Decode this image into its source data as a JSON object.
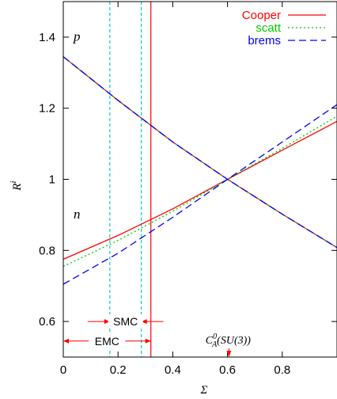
{
  "chart_data": {
    "type": "line",
    "xlabel": "Σ",
    "ylabel": "R",
    "ylabel_sup": "i",
    "xlim": [
      0,
      1
    ],
    "ylim": [
      0.5,
      1.5
    ],
    "x_ticks": [
      0,
      0.2,
      0.4,
      0.6,
      0.8
    ],
    "x_tick_labels": [
      "0",
      "0.2",
      "0.4",
      "0.6",
      "0.8"
    ],
    "y_ticks": [
      0.6,
      0.8,
      1.0,
      1.2,
      1.4
    ],
    "y_tick_labels": [
      "0.6",
      "0.8",
      "1",
      "1.2",
      "1.4"
    ],
    "legend_position": "top-right",
    "colors": {
      "cooper": "#ff0000",
      "scatt": "#00cc00",
      "brems": "#0000ff",
      "band": "#00cccc"
    },
    "series": [
      {
        "name": "Cooper",
        "curve": "n",
        "dash": "solid",
        "x": [
          0,
          0.2,
          0.4,
          0.6,
          0.8,
          1.0
        ],
        "y": [
          0.775,
          0.842,
          0.917,
          1.0,
          1.082,
          1.163
        ]
      },
      {
        "name": "scatt",
        "curve": "n",
        "dash": "dotted",
        "x": [
          0,
          0.2,
          0.4,
          0.6,
          0.8,
          1.0
        ],
        "y": [
          0.755,
          0.828,
          0.91,
          1.0,
          1.087,
          1.177
        ]
      },
      {
        "name": "brems",
        "curve": "n",
        "dash": "dashed",
        "x": [
          0,
          0.2,
          0.4,
          0.6,
          0.8,
          1.0
        ],
        "y": [
          0.705,
          0.792,
          0.893,
          1.0,
          1.105,
          1.21
        ]
      },
      {
        "name": "Cooper",
        "curve": "p",
        "dash": "solid",
        "x": [
          0,
          0.2,
          0.4,
          0.6,
          0.8,
          1.0
        ],
        "y": [
          1.345,
          1.222,
          1.105,
          1.0,
          0.902,
          0.808
        ]
      },
      {
        "name": "scatt",
        "curve": "p",
        "dash": "dotted",
        "x": [
          0,
          0.2,
          0.4,
          0.6,
          0.8,
          1.0
        ],
        "y": [
          1.345,
          1.222,
          1.105,
          1.0,
          0.902,
          0.808
        ]
      },
      {
        "name": "brems",
        "curve": "p",
        "dash": "dashed",
        "x": [
          0,
          0.2,
          0.4,
          0.6,
          0.8,
          1.0
        ],
        "y": [
          1.345,
          1.222,
          1.105,
          1.0,
          0.902,
          0.808
        ]
      }
    ],
    "curve_labels": [
      {
        "text": "p",
        "x": 0.05,
        "y": 1.39
      },
      {
        "text": "n",
        "x": 0.05,
        "y": 0.89
      }
    ],
    "vertical_lines": [
      {
        "x": 0.17,
        "color": "#00cccc",
        "dash": "dashed"
      },
      {
        "x": 0.285,
        "color": "#00cccc",
        "dash": "dashed"
      },
      {
        "x": 0.32,
        "color": "#ff0000",
        "dash": "solid"
      }
    ],
    "annotations": [
      {
        "text": "SMC",
        "x_from": 0.17,
        "x_to": 0.285,
        "y": 0.6
      },
      {
        "text": "EMC",
        "x_from": 0,
        "x_to": 0.32,
        "y": 0.545
      }
    ],
    "marker": {
      "text_main": "C",
      "text_sub": "A",
      "text_sup": "0",
      "text_rest": "(SU(3))",
      "x": 0.605
    }
  }
}
